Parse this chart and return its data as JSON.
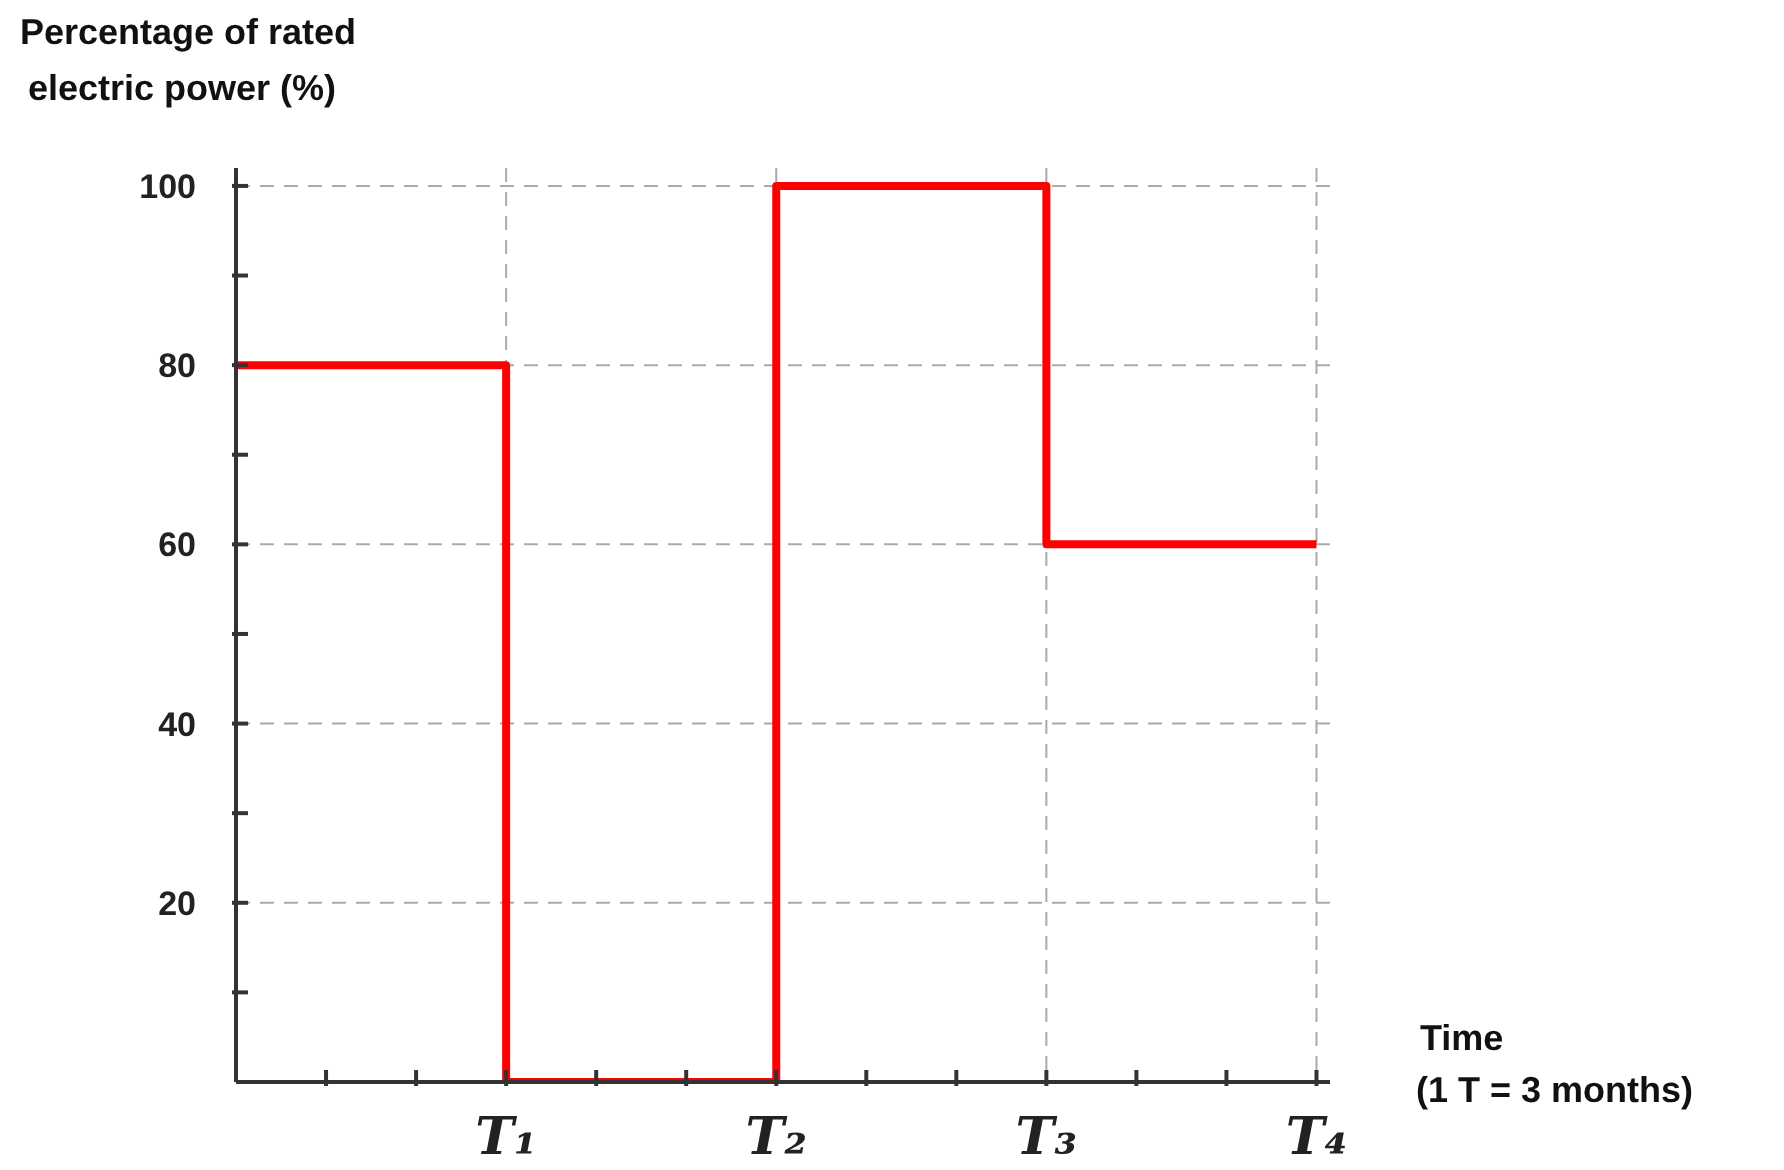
{
  "chart_data": {
    "type": "step",
    "ylabel": "Percentage of rated\nelectric power (%)",
    "xlabel": "Time\n(1 T = 3 months)",
    "categories": [
      null,
      "T₁",
      "T₂",
      "T₃",
      "T₄"
    ],
    "series": [
      {
        "color": "#ff0000",
        "values": [
          80,
          0,
          100,
          60,
          60
        ]
      }
    ],
    "ylim": [
      0,
      102
    ],
    "yticks": [
      {
        "value": 10,
        "label": null
      },
      20,
      {
        "value": 30,
        "label": null
      },
      40,
      {
        "value": 50,
        "label": null
      },
      60,
      {
        "value": 70,
        "label": null
      },
      80,
      {
        "value": 90,
        "label": null
      },
      100
    ],
    "grid": true,
    "marker": "none",
    "line_style": "solid"
  }
}
